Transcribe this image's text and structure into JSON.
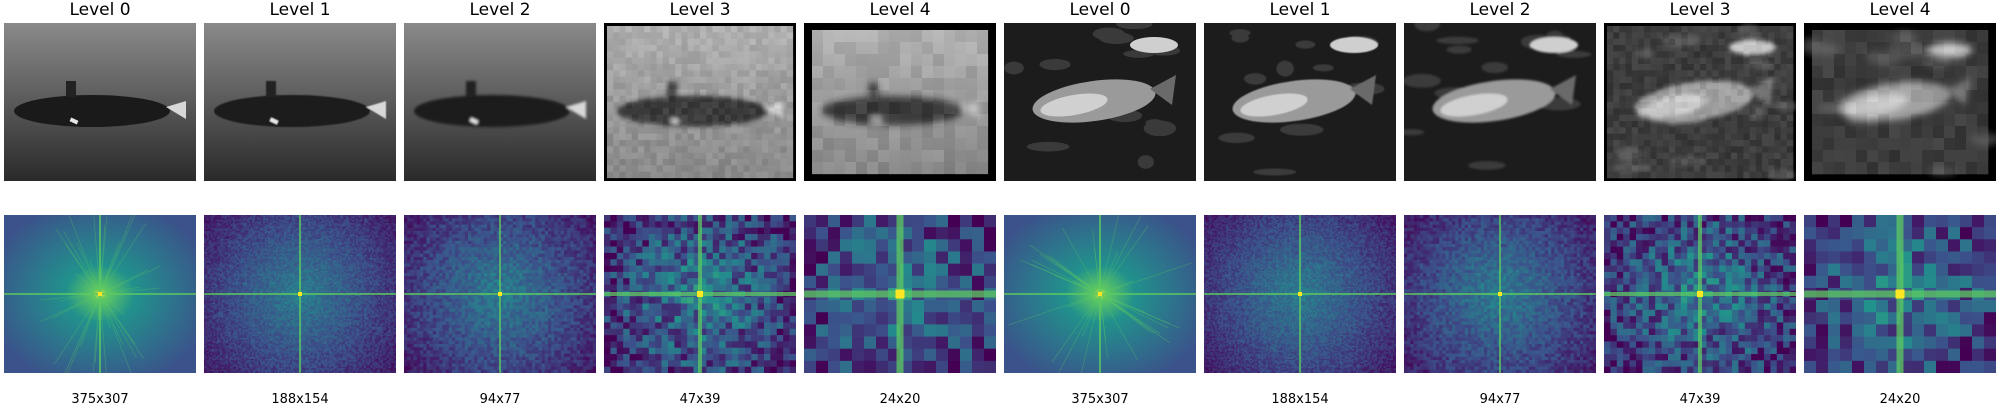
{
  "panels": [
    {
      "title": "Level 0",
      "size": "375x307",
      "subject": "submarine",
      "level": 0
    },
    {
      "title": "Level 1",
      "size": "188x154",
      "subject": "submarine",
      "level": 1
    },
    {
      "title": "Level 2",
      "size": "94x77",
      "subject": "submarine",
      "level": 2
    },
    {
      "title": "Level 3",
      "size": "47x39",
      "subject": "submarine",
      "level": 3
    },
    {
      "title": "Level 4",
      "size": "24x20",
      "subject": "submarine",
      "level": 4
    },
    {
      "title": "Level 0",
      "size": "375x307",
      "subject": "fish",
      "level": 0
    },
    {
      "title": "Level 1",
      "size": "188x154",
      "subject": "fish",
      "level": 1
    },
    {
      "title": "Level 2",
      "size": "94x77",
      "subject": "fish",
      "level": 2
    },
    {
      "title": "Level 3",
      "size": "47x39",
      "subject": "fish",
      "level": 3
    },
    {
      "title": "Level 4",
      "size": "24x20",
      "subject": "fish",
      "level": 4
    }
  ],
  "colors": {
    "spectrum_low": "#3b528b",
    "spectrum_mid": "#21918c",
    "spectrum_high": "#5ec962",
    "spectrum_peak": "#fde725"
  }
}
